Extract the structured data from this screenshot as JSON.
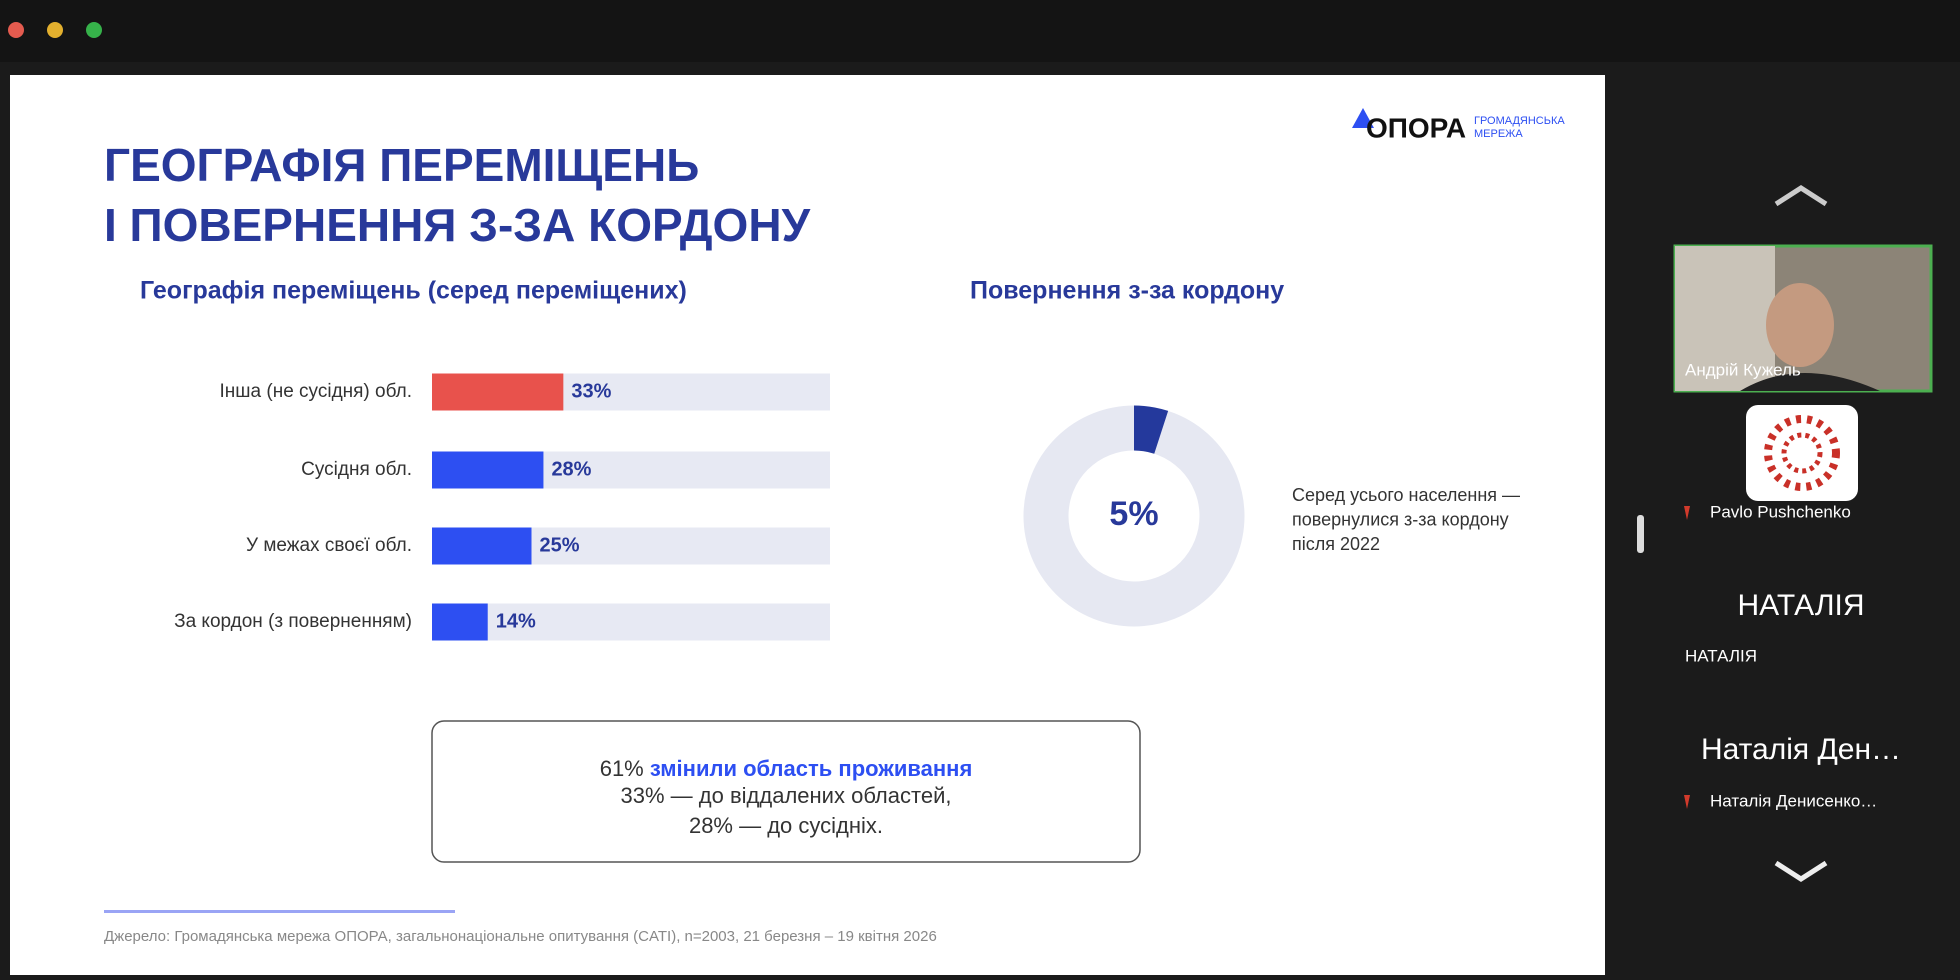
{
  "slide": {
    "logo": "ОПОРА",
    "logo_tagline_1": "ГРОМАДЯНСЬКА",
    "logo_tagline_2": "МЕРЕЖА",
    "title_line_1": "ГЕОГРАФІЯ ПЕРЕМІЩЕНЬ",
    "title_line_2": "І ПОВЕРНЕННЯ З-ЗА КОРДОНУ",
    "callout": {
      "lead": "61%",
      "highlight": "змінили область проживання",
      "line_2": "33% — до віддалених областей,",
      "line_3": "28% — до сусідніх."
    },
    "source": "Джерело: Громадянська мережа ОПОРА, загальнонаціональне опитування (CATI), n=2003, 21 березня – 19 квітня 2026"
  },
  "chart_data": [
    {
      "type": "bar",
      "title": "Географія переміщень (серед переміщених)",
      "categories": [
        "Інша (не сусідня) обл.",
        "Сусідня обл.",
        "У межах своєї обл.",
        "За кордон (з поверненням)"
      ],
      "values": [
        33,
        28,
        25,
        14
      ],
      "value_labels": [
        "33%",
        "28%",
        "25%",
        "14%"
      ],
      "colors": [
        "#e8524c",
        "#2d4ff2",
        "#2d4ff2",
        "#2d4ff2"
      ],
      "track_color": "#e7e9f3",
      "xlim": [
        0,
        100
      ]
    },
    {
      "type": "donut",
      "title": "Повернення з-за кордону",
      "values": [
        5
      ],
      "value_labels": [
        "5%"
      ],
      "color": "#24399c",
      "track_color": "#e6e8f2",
      "ylim": [
        0,
        100
      ],
      "annotation": [
        "Серед усього населення —",
        "повернулися з-за кордону",
        "після 2022"
      ]
    }
  ],
  "participants": [
    {
      "name": "Андрій Кужель"
    },
    {
      "name": "Pavlo Pushchenko"
    },
    {
      "display": "НАТАЛІЯ",
      "name": "НАТАЛІЯ"
    },
    {
      "display": "Наталія Ден…",
      "name": "Наталія Денисенко…"
    }
  ]
}
